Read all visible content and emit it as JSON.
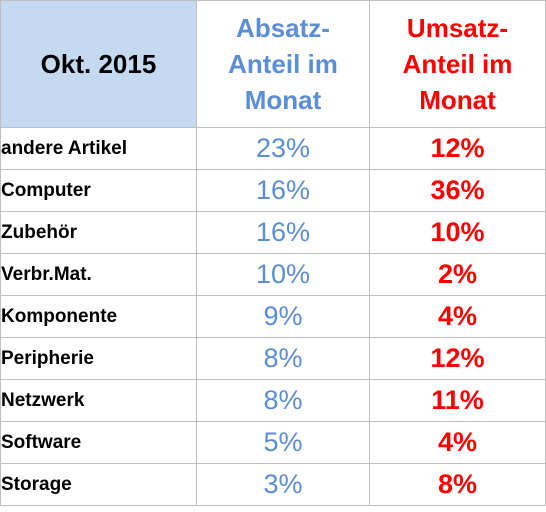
{
  "header": {
    "period": "Okt. 2015",
    "absatz_lines": [
      "Absatz-",
      "Anteil im",
      "Monat"
    ],
    "umsatz_lines": [
      "Umsatz-",
      "Anteil im",
      "Monat"
    ]
  },
  "rows": [
    {
      "label": "andere Artikel",
      "absatz": "23%",
      "umsatz": "12%"
    },
    {
      "label": "Computer",
      "absatz": "16%",
      "umsatz": "36%"
    },
    {
      "label": "Zubehör",
      "absatz": "16%",
      "umsatz": "10%"
    },
    {
      "label": "Verbr.Mat.",
      "absatz": "10%",
      "umsatz": "2%"
    },
    {
      "label": "Komponente",
      "absatz": "9%",
      "umsatz": "4%"
    },
    {
      "label": "Peripherie",
      "absatz": "8%",
      "umsatz": "12%"
    },
    {
      "label": "Netzwerk",
      "absatz": "8%",
      "umsatz": "11%"
    },
    {
      "label": "Software",
      "absatz": "5%",
      "umsatz": "4%"
    },
    {
      "label": "Storage",
      "absatz": "3%",
      "umsatz": "8%"
    }
  ],
  "colors": {
    "absatz": "#5b8ed6",
    "umsatz": "#ff0000",
    "period_bg": "#c5d9f1"
  }
}
